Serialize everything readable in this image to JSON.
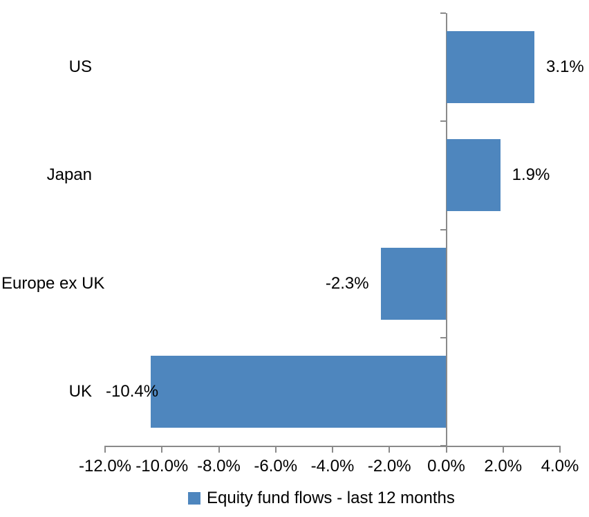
{
  "chart_data": {
    "type": "bar",
    "orientation": "horizontal",
    "title": "",
    "xlabel": "",
    "ylabel": "",
    "categories": [
      "US",
      "Japan",
      "Europe ex UK",
      "UK"
    ],
    "series": [
      {
        "name": "Equity fund flows - last 12 months",
        "values": [
          3.1,
          1.9,
          -2.3,
          -10.4
        ]
      }
    ],
    "value_labels": [
      "3.1%",
      "1.9%",
      "-2.3%",
      "-10.4%"
    ],
    "xlim": [
      -12,
      4
    ],
    "x_ticks": [
      -12,
      -10,
      -8,
      -6,
      -4,
      -2,
      0,
      2,
      4
    ],
    "x_tick_labels": [
      "-12.0%",
      "-10.0%",
      "-8.0%",
      "-6.0%",
      "-4.0%",
      "-2.0%",
      "0.0%",
      "2.0%",
      "4.0%"
    ],
    "grid": false,
    "legend": {
      "position": "bottom",
      "label": "Equity fund flows - last 12 months"
    },
    "colors": {
      "bar": "#4E86BE",
      "axis": "#8A8A8A",
      "text": "#000000",
      "background": "#FFFFFF"
    }
  }
}
